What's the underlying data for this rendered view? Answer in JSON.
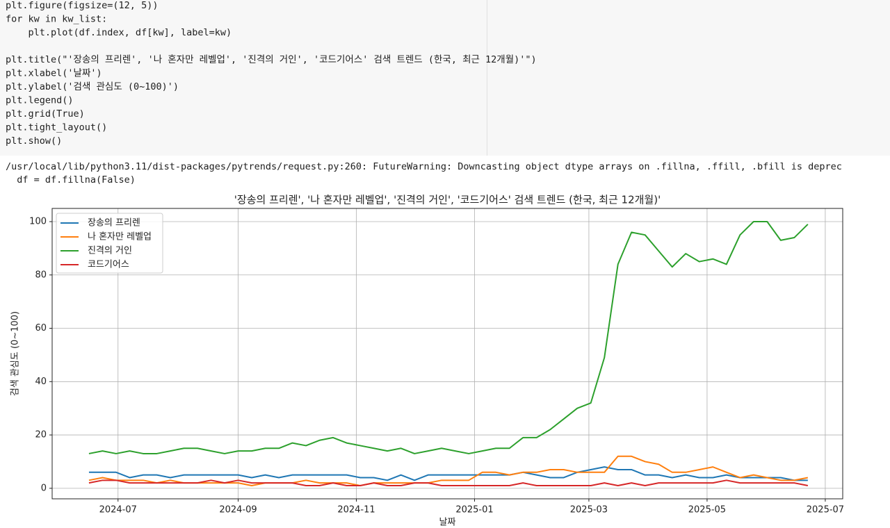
{
  "code": {
    "blocks": [
      [
        "plt.figure(figsize=(12, 5))",
        "for kw in kw_list:",
        "    plt.plot(df.index, df[kw], label=kw)"
      ],
      [
        "plt.title(\"'장송의 프리렌', '나 혼자만 레벨업', '진격의 거인', '코드기어스' 검색 트렌드 (한국, 최근 12개월)'\")",
        "plt.xlabel('날짜')",
        "plt.ylabel('검색 관심도 (0~100)')",
        "plt.legend()",
        "plt.grid(True)",
        "plt.tight_layout()",
        "plt.show()"
      ]
    ]
  },
  "output": {
    "lines": [
      "/usr/local/lib/python3.11/dist-packages/pytrends/request.py:260: FutureWarning: Downcasting object dtype arrays on .fillna, .ffill, .bfill is deprec",
      "  df = df.fillna(False)"
    ]
  },
  "chart_data": {
    "type": "line",
    "title": "'장송의 프리렌', '나 혼자만 레벨업', '진격의 거인', '코드기어스' 검색 트렌드 (한국, 최근 12개월)'",
    "xlabel": "날짜",
    "ylabel": "검색 관심도 (0~100)",
    "x": [
      "2024-06-16",
      "2024-06-23",
      "2024-06-30",
      "2024-07-07",
      "2024-07-14",
      "2024-07-21",
      "2024-07-28",
      "2024-08-04",
      "2024-08-11",
      "2024-08-18",
      "2024-08-25",
      "2024-09-01",
      "2024-09-08",
      "2024-09-15",
      "2024-09-22",
      "2024-09-29",
      "2024-10-06",
      "2024-10-13",
      "2024-10-20",
      "2024-10-27",
      "2024-11-03",
      "2024-11-10",
      "2024-11-17",
      "2024-11-24",
      "2024-12-01",
      "2024-12-08",
      "2024-12-15",
      "2024-12-22",
      "2024-12-29",
      "2025-01-05",
      "2025-01-12",
      "2025-01-19",
      "2025-01-26",
      "2025-02-02",
      "2025-02-09",
      "2025-02-16",
      "2025-02-23",
      "2025-03-02",
      "2025-03-09",
      "2025-03-16",
      "2025-03-23",
      "2025-03-30",
      "2025-04-06",
      "2025-04-13",
      "2025-04-20",
      "2025-04-27",
      "2025-05-04",
      "2025-05-11",
      "2025-05-18",
      "2025-05-25",
      "2025-06-01",
      "2025-06-08",
      "2025-06-15",
      "2025-06-22"
    ],
    "series": [
      {
        "name": "장송의 프리렌",
        "color": "#1f77b4",
        "values": [
          6,
          6,
          6,
          4,
          5,
          5,
          4,
          5,
          5,
          5,
          5,
          5,
          4,
          5,
          4,
          5,
          5,
          5,
          5,
          5,
          4,
          4,
          3,
          5,
          3,
          5,
          5,
          5,
          5,
          5,
          5,
          5,
          6,
          5,
          4,
          4,
          6,
          7,
          8,
          7,
          7,
          5,
          5,
          4,
          5,
          4,
          4,
          5,
          4,
          4,
          4,
          4,
          3,
          3
        ]
      },
      {
        "name": "나 혼자만 레벨업",
        "color": "#ff7f0e",
        "values": [
          3,
          4,
          3,
          3,
          3,
          2,
          3,
          2,
          2,
          2,
          2,
          2,
          1,
          2,
          2,
          2,
          3,
          2,
          2,
          2,
          1,
          2,
          2,
          2,
          2,
          2,
          3,
          3,
          3,
          6,
          6,
          5,
          6,
          6,
          7,
          7,
          6,
          6,
          6,
          12,
          12,
          10,
          9,
          6,
          6,
          7,
          8,
          6,
          4,
          5,
          4,
          3,
          3,
          4
        ]
      },
      {
        "name": "진격의 거인",
        "color": "#2ca02c",
        "values": [
          13,
          14,
          13,
          14,
          13,
          13,
          14,
          15,
          15,
          14,
          13,
          14,
          14,
          15,
          15,
          17,
          16,
          18,
          19,
          17,
          16,
          15,
          14,
          15,
          13,
          14,
          15,
          14,
          13,
          14,
          15,
          15,
          19,
          19,
          22,
          26,
          30,
          32,
          49,
          84,
          96,
          95,
          89,
          83,
          88,
          85,
          86,
          84,
          95,
          100,
          100,
          93,
          94,
          99
        ]
      },
      {
        "name": "코드기어스",
        "color": "#d62728",
        "values": [
          2,
          3,
          3,
          2,
          2,
          2,
          2,
          2,
          2,
          3,
          2,
          3,
          2,
          2,
          2,
          2,
          1,
          1,
          2,
          1,
          1,
          2,
          1,
          1,
          2,
          2,
          1,
          1,
          1,
          1,
          1,
          1,
          2,
          1,
          1,
          1,
          1,
          1,
          2,
          1,
          2,
          1,
          2,
          2,
          2,
          2,
          2,
          3,
          2,
          2,
          2,
          2,
          2,
          1
        ]
      }
    ],
    "xlim": [
      "2024-05-28",
      "2025-07-10"
    ],
    "xticks": [
      {
        "value": "2024-07-01",
        "label": "2024-07"
      },
      {
        "value": "2024-09-01",
        "label": "2024-09"
      },
      {
        "value": "2024-11-01",
        "label": "2024-11"
      },
      {
        "value": "2025-01-01",
        "label": "2025-01"
      },
      {
        "value": "2025-03-01",
        "label": "2025-03"
      },
      {
        "value": "2025-05-01",
        "label": "2025-05"
      },
      {
        "value": "2025-07-01",
        "label": "2025-07"
      }
    ],
    "ylim": [
      -3.95,
      104.95
    ],
    "yticks": [
      0,
      20,
      40,
      60,
      80,
      100
    ],
    "grid": true,
    "legend": "upper left"
  }
}
